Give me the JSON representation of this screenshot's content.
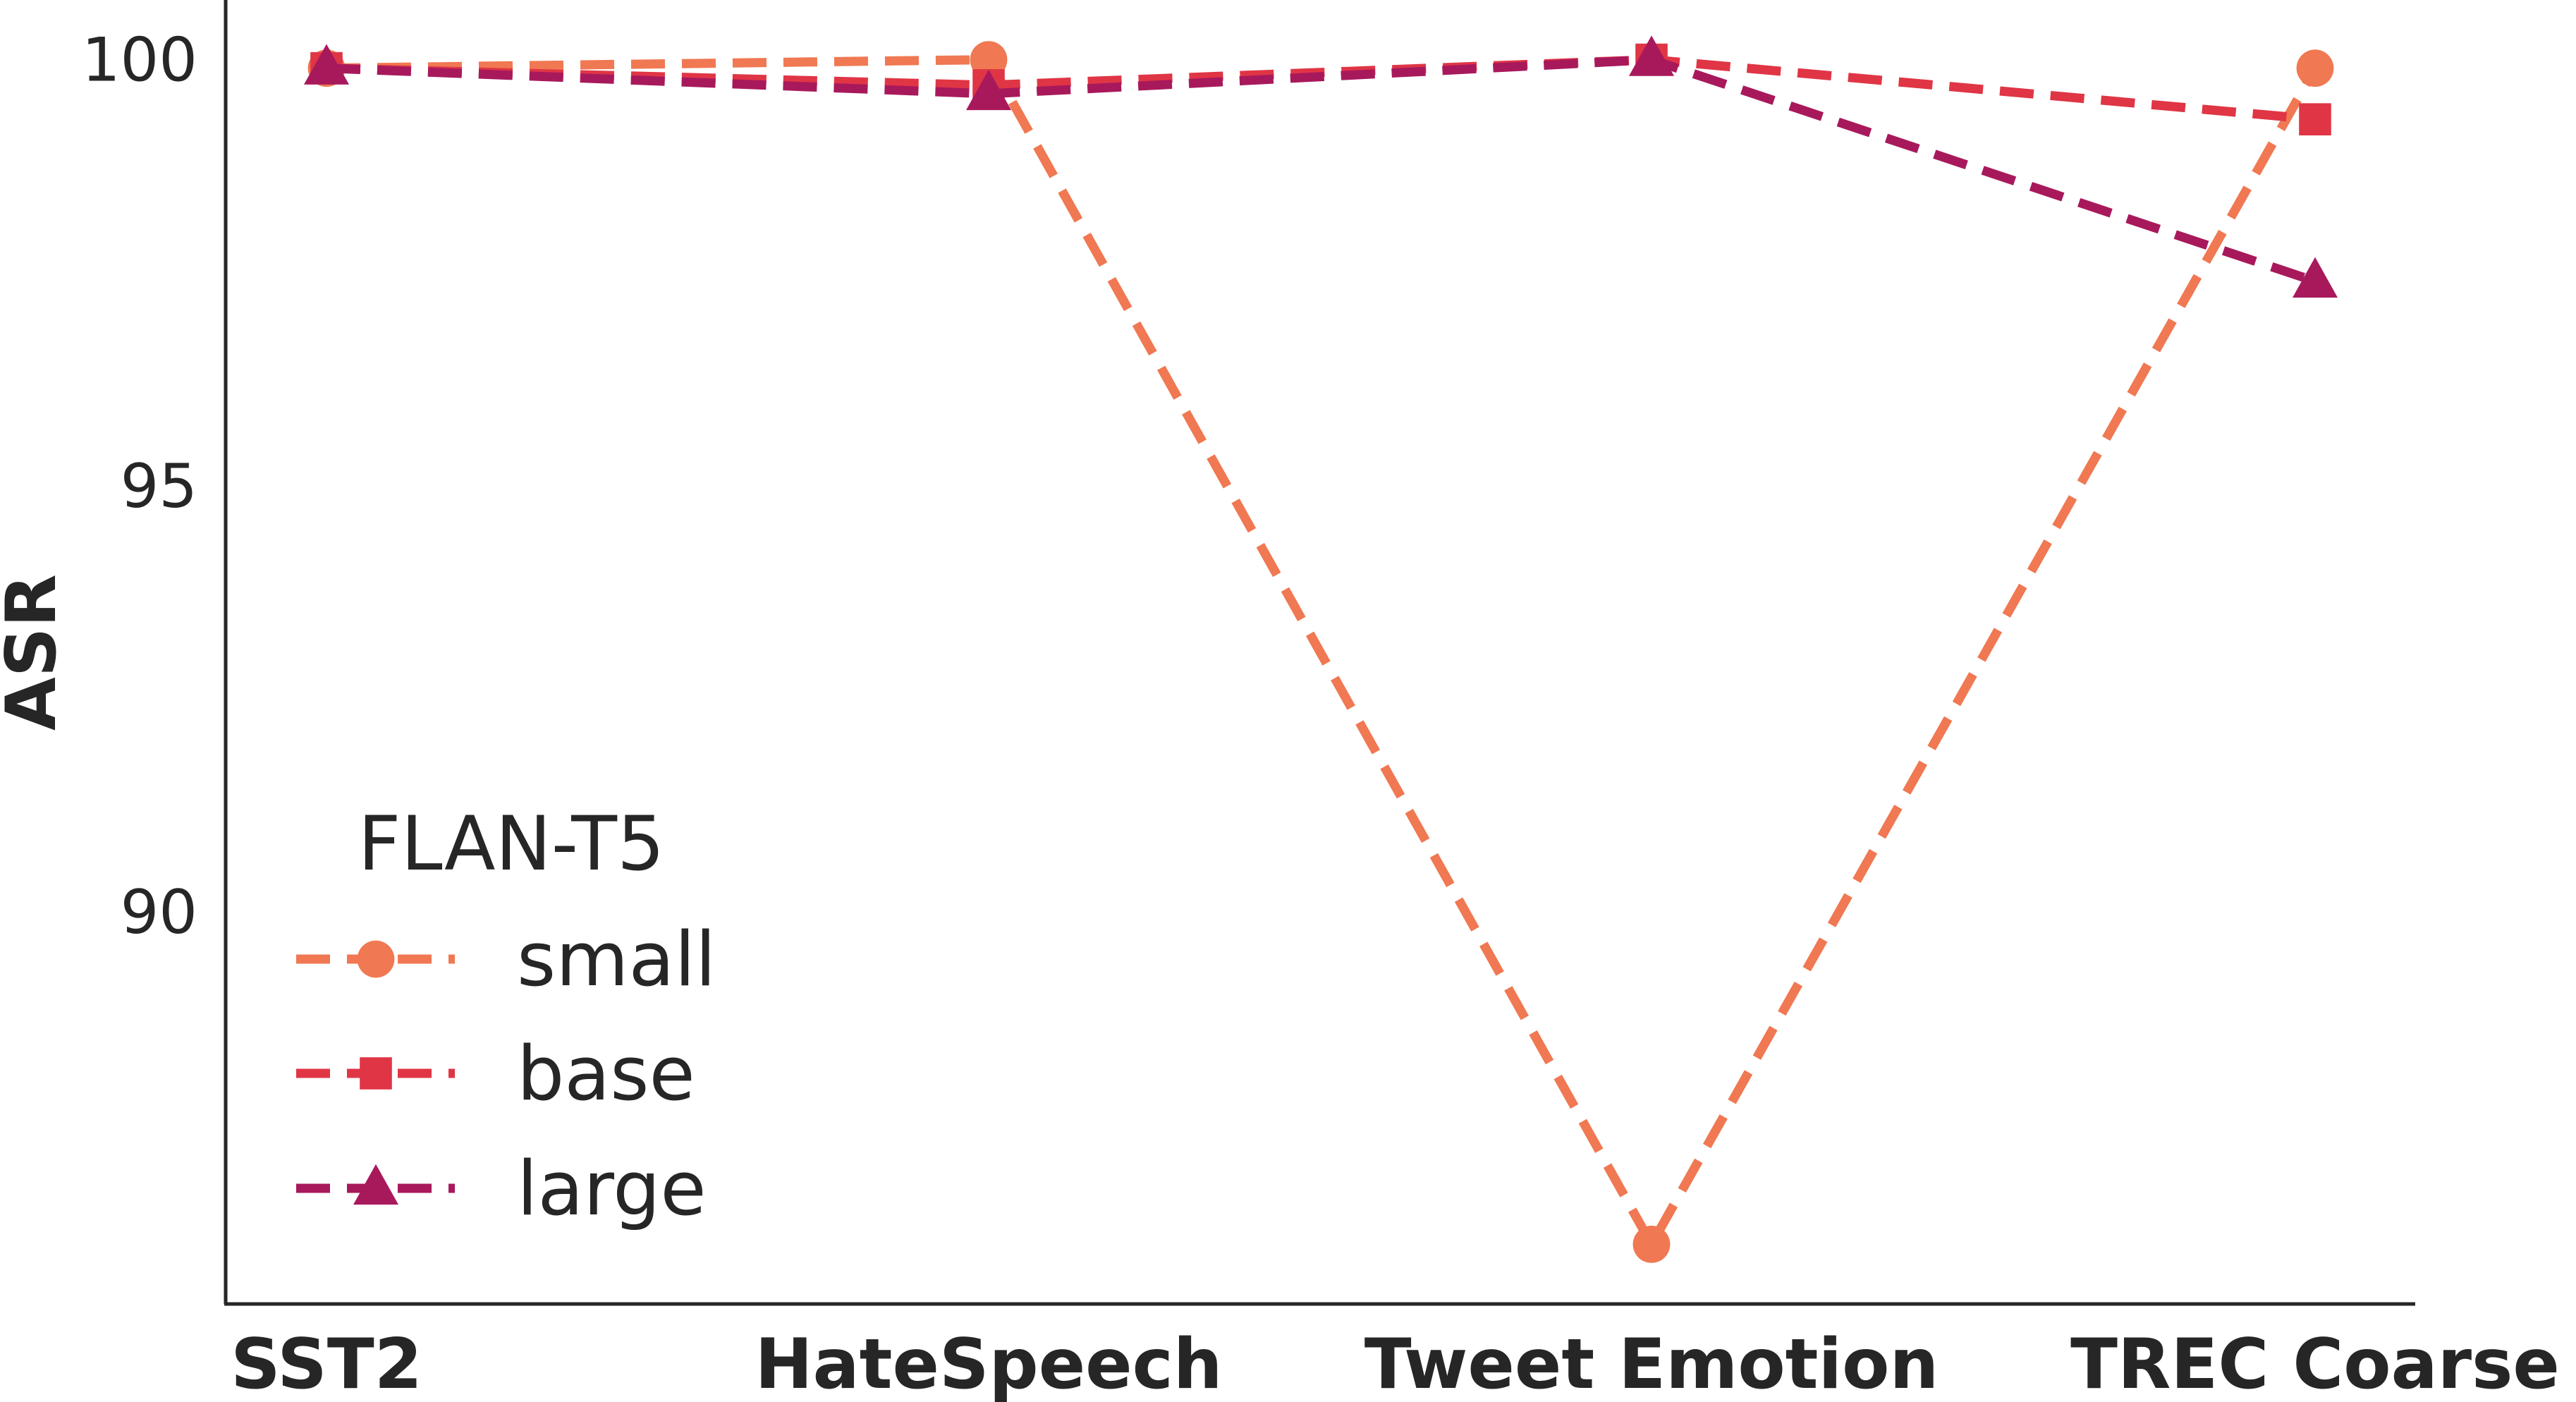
{
  "chart_data": {
    "type": "line",
    "title": "",
    "xlabel": "",
    "ylabel": "ASR",
    "categories": [
      "SST2",
      "HateSpeech",
      "Tweet Emotion",
      "TREC Coarse"
    ],
    "y_ticks": [
      90,
      95,
      100
    ],
    "ylim": [
      85.4,
      100.7
    ],
    "grid": false,
    "legend": {
      "title": "FLAN-T5",
      "placement": "lower-left"
    },
    "series": [
      {
        "name": "small",
        "values": [
          99.9,
          100.0,
          86.1,
          99.9
        ],
        "color": "#f07852",
        "marker": "circle",
        "dash": "dashed"
      },
      {
        "name": "base",
        "values": [
          99.9,
          99.7,
          100.0,
          99.3
        ],
        "color": "#e03545",
        "marker": "square",
        "dash": "dashed"
      },
      {
        "name": "large",
        "values": [
          99.9,
          99.6,
          100.0,
          97.4
        ],
        "color": "#a8195c",
        "marker": "triangle",
        "dash": "dashed"
      }
    ]
  }
}
